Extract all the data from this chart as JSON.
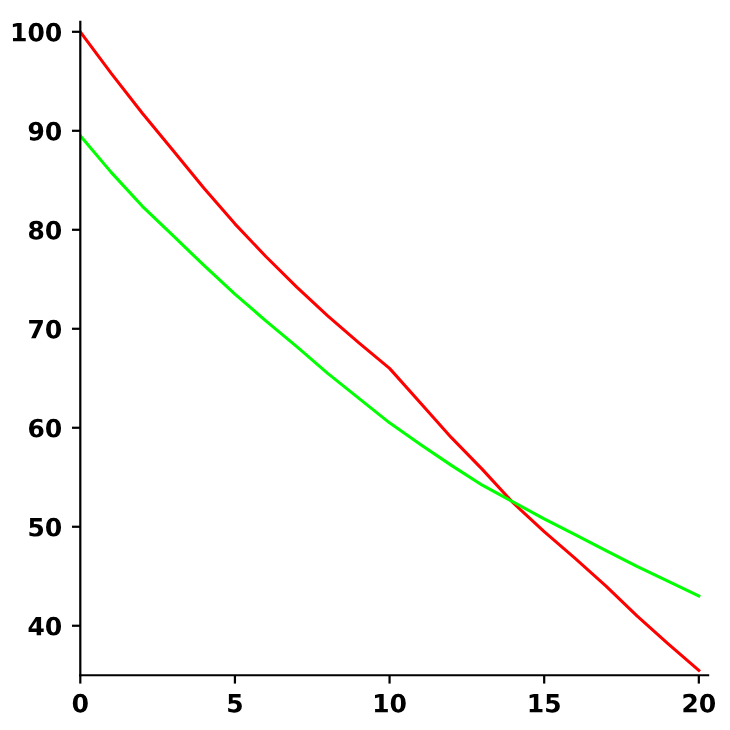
{
  "chart_data": {
    "type": "line",
    "x": [
      0,
      1,
      2,
      3,
      4,
      5,
      6,
      7,
      8,
      9,
      10,
      11,
      12,
      13,
      14,
      15,
      16,
      17,
      18,
      19,
      20
    ],
    "series": [
      {
        "color": "#ff0000",
        "values": [
          100,
          95.8,
          91.8,
          88.0,
          84.2,
          80.6,
          77.3,
          74.2,
          71.3,
          68.6,
          66.0,
          62.5,
          59.0,
          55.8,
          52.4,
          49.5,
          46.8,
          44.0,
          41.0,
          38.2,
          35.5
        ]
      },
      {
        "color": "#00ff00",
        "values": [
          89.5,
          85.8,
          82.4,
          79.4,
          76.4,
          73.5,
          70.8,
          68.2,
          65.5,
          63.0,
          60.5,
          58.3,
          56.2,
          54.2,
          52.5,
          50.8,
          49.2,
          47.6,
          46.0,
          44.5,
          43.0
        ]
      }
    ],
    "xlim": [
      0,
      20.3
    ],
    "ylim": [
      35,
      101
    ],
    "xticks": [
      0,
      5,
      10,
      15,
      20
    ],
    "yticks": [
      40,
      50,
      60,
      70,
      80,
      90,
      100
    ],
    "grid": false,
    "legend": false,
    "marker": "none",
    "line_style": "solid"
  }
}
